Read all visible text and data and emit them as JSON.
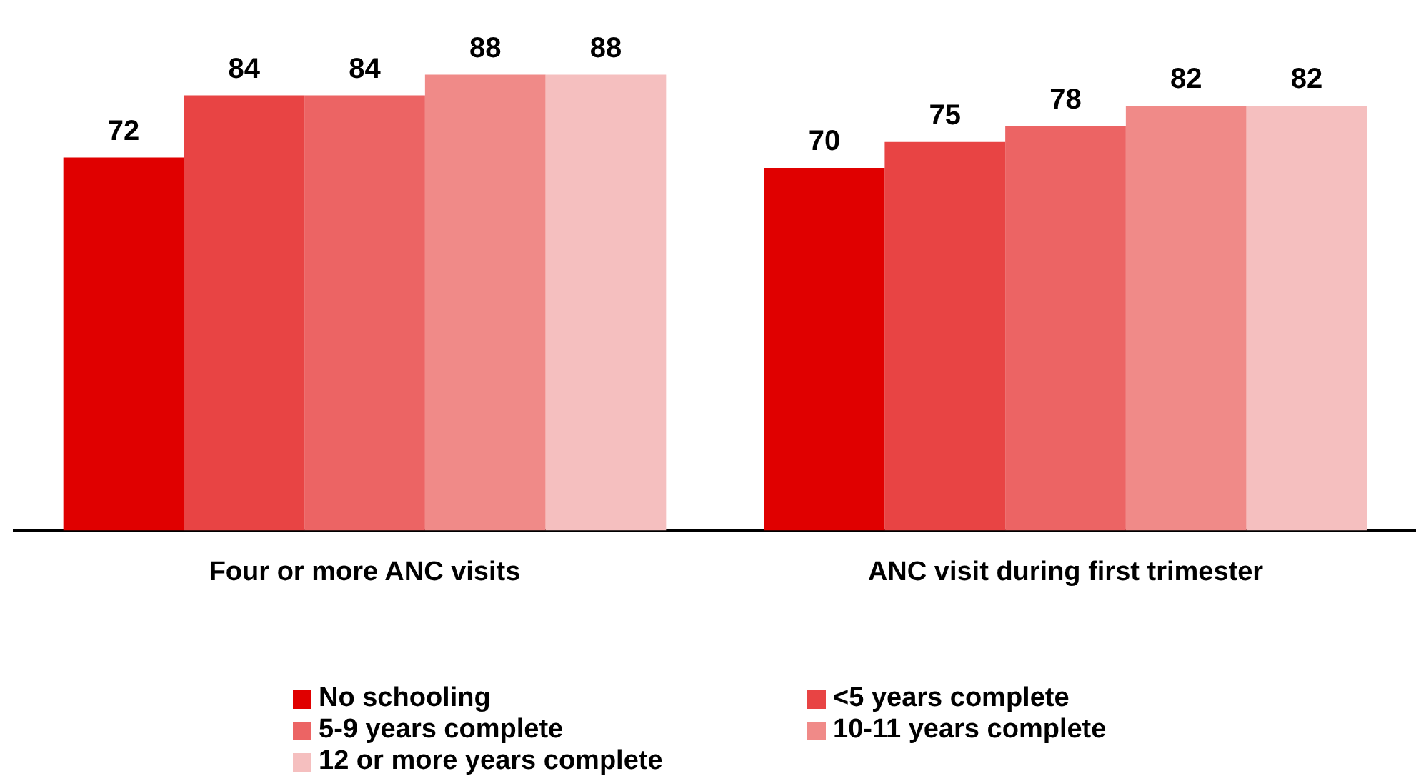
{
  "chart_data": {
    "type": "bar",
    "categories": [
      "Four or more ANC visits",
      "ANC visit during first trimester"
    ],
    "series": [
      {
        "name": "No schooling",
        "color": "#e00000",
        "values": [
          72,
          70
        ]
      },
      {
        "name": "<5 years complete",
        "color": "#e84444",
        "values": [
          84,
          75
        ]
      },
      {
        "name": "5-9 years complete",
        "color": "#ec6464",
        "values": [
          84,
          78
        ]
      },
      {
        "name": "10-11 years complete",
        "color": "#f08a88",
        "values": [
          88,
          82
        ]
      },
      {
        "name": "12 or more years complete",
        "color": "#f5bfbf",
        "values": [
          88,
          82
        ]
      }
    ],
    "data_labels": true,
    "grid": false,
    "legend": "bottom"
  }
}
